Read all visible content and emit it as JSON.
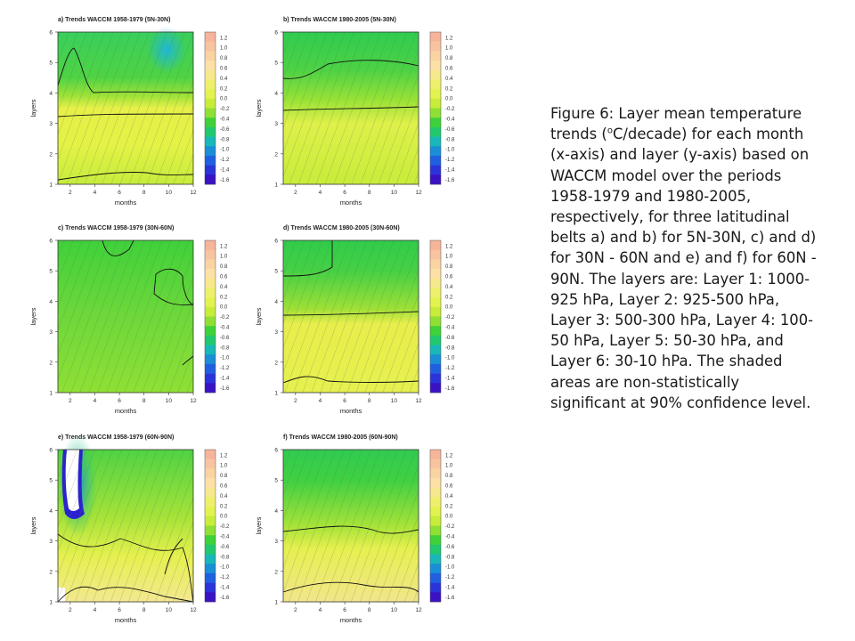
{
  "panels": [
    {
      "id": "a",
      "title": "a) Trends WACCM 1958-1979 (5N-30N)",
      "xlabel": "months",
      "ylabel": "layers"
    },
    {
      "id": "b",
      "title": "b) Trends WACCM 1980-2005 (5N-30N)",
      "xlabel": "months",
      "ylabel": "layers"
    },
    {
      "id": "c",
      "title": "c) Trends WACCM 1958-1979 (30N-60N)",
      "xlabel": "months",
      "ylabel": "layers"
    },
    {
      "id": "d",
      "title": "d) Trends WACCM 1980-2005 (30N-60N)",
      "xlabel": "months",
      "ylabel": "layers"
    },
    {
      "id": "e",
      "title": "e) Trends WACCM 1958-1979 (60N-90N)",
      "xlabel": "months",
      "ylabel": "layers"
    },
    {
      "id": "f",
      "title": "f) Trends WACCM 1980-2005 (60N-90N)",
      "xlabel": "months",
      "ylabel": "layers"
    }
  ],
  "x_ticks": [
    "2",
    "4",
    "6",
    "8",
    "10",
    "12"
  ],
  "y_ticks": [
    "1",
    "2",
    "3",
    "4",
    "5",
    "6"
  ],
  "colorbar": {
    "labels": [
      "1.2",
      "1.0",
      "0.8",
      "0.6",
      "0.4",
      "0.2",
      "0.0",
      "-0.2",
      "-0.4",
      "-0.6",
      "-0.8",
      "-1.0",
      "-1.2",
      "-1.4",
      "-1.6"
    ],
    "colors": [
      "#f6b59a",
      "#f8c49f",
      "#fad3a3",
      "#fde0a6",
      "#f6e88c",
      "#eef06c",
      "#e2f24e",
      "#c8ec3a",
      "#8fe034",
      "#3fd13a",
      "#22c86e",
      "#18b8b8",
      "#1a8ed6",
      "#1f5fe0",
      "#2b34d8",
      "#3a12c4"
    ]
  },
  "caption": {
    "p1": "Figure 6: Layer mean temperature trends (",
    "sup": "o",
    "p2": "C/decade) for each month (x-axis) and layer (y-axis) based on WACCM model over the periods 1958-1979 and 1980-2005, respectively, for three latitudinal belts a) and b) for 5N-30N, c) and d) for 30N - 60N and e) and f) for 60N - 90N. The layers are: Layer 1: 1000-925 hPa, Layer 2: 925-500 hPa, Layer 3: 500-300 hPa, Layer 4: 100-50 hPa, Layer 5: 50-30 hPa, and Layer 6: 30-10 hPa. The shaded areas are non-statistically significant at 90% confidence level."
  }
}
